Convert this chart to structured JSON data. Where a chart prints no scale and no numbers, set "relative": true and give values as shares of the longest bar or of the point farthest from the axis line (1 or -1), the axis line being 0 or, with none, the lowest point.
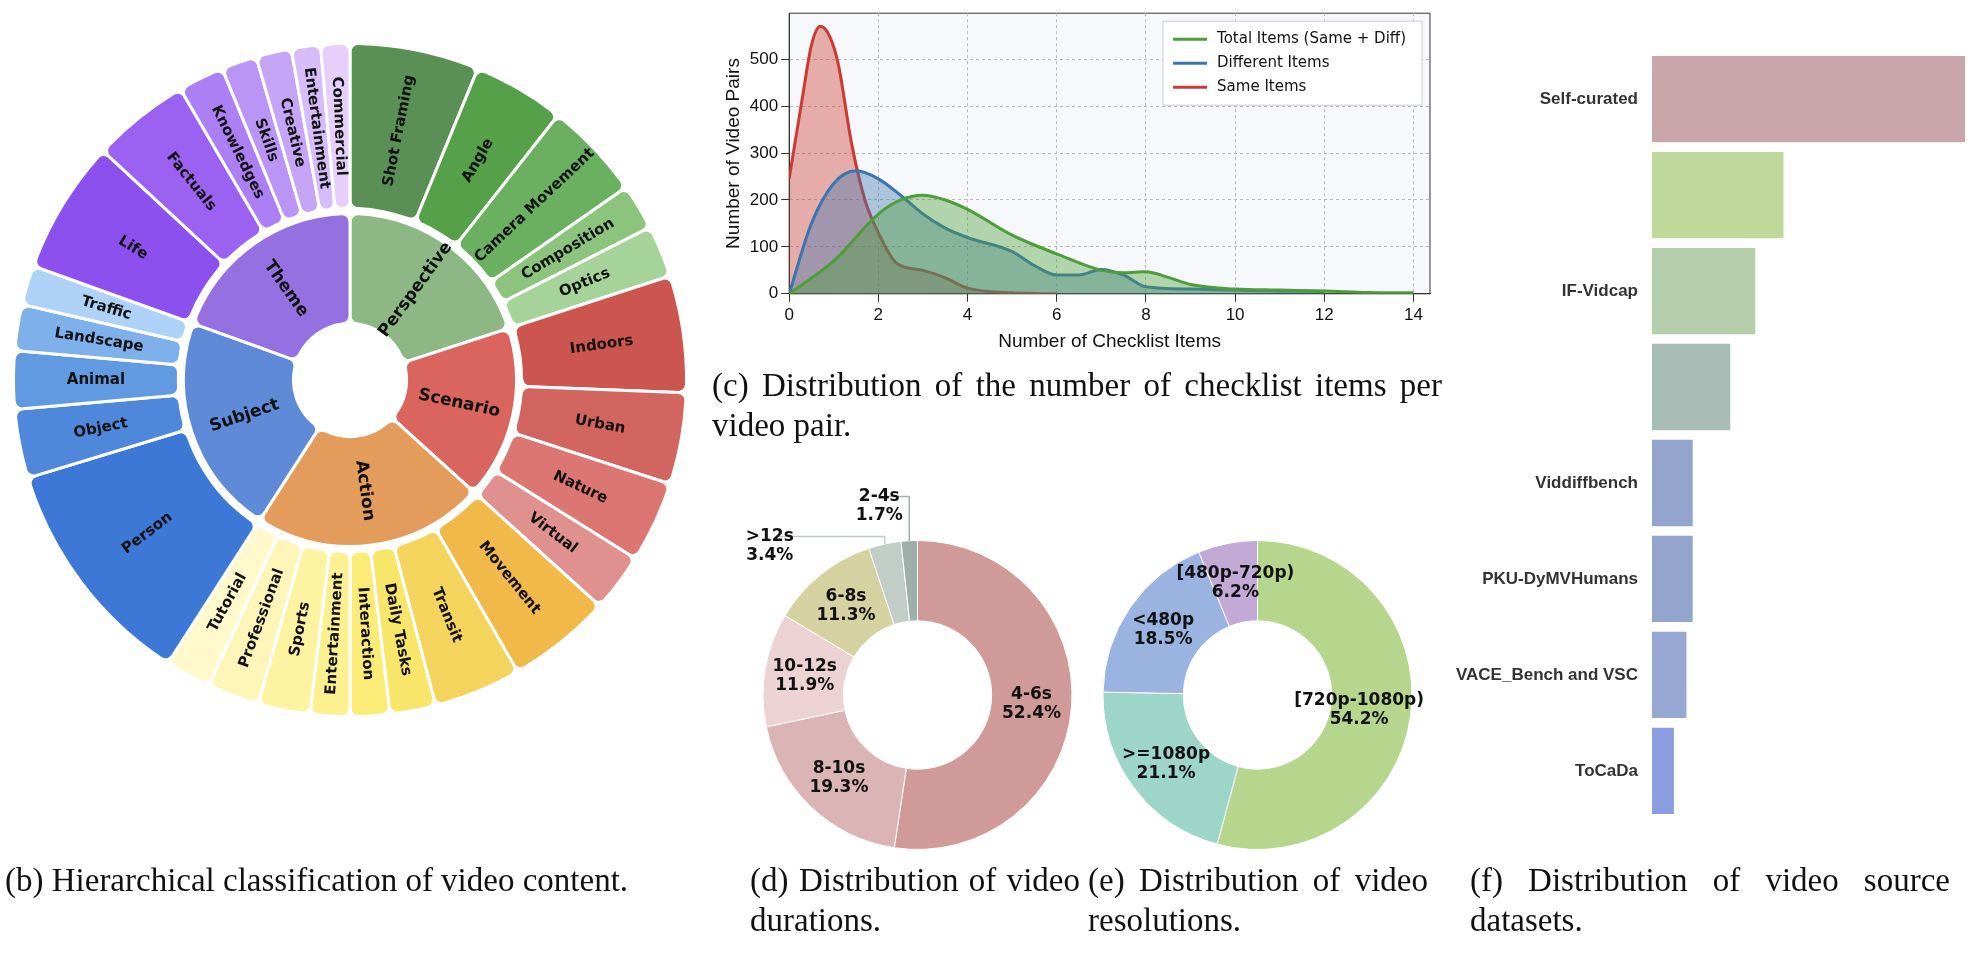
{
  "chart_data": [
    {
      "type": "donut",
      "categories": [
        "Shot Framing",
        "Angle",
        "Camera Movement",
        "Composition",
        "Optics",
        "Indoors",
        "Urban",
        "Nature",
        "Virtual",
        "Movement",
        "Transit",
        "Daily Tasks",
        "Interaction",
        "Entertainment",
        "Sports",
        "Professional",
        "Tutorial",
        "Person",
        "Object",
        "Animal",
        "Landscape",
        "Traffic",
        "Life",
        "Factuals",
        "Knowledges",
        "Skills",
        "Creative",
        "Entertainment",
        "Commercial"
      ],
      "values": [
        6.2,
        4.4,
        4.7,
        2.2,
        2.5,
        5.6,
        4.4,
        3.9,
        2.8,
        5.0,
        4.2,
        2.2,
        1.9,
        1.9,
        2.5,
        2.5,
        2.2,
        11.2,
        3.3,
        2.8,
        2.2,
        1.9,
        6.4,
        4.7,
        2.2,
        1.7,
        1.7,
        1.4,
        1.4
      ],
      "colors": [
        "#5a8f55",
        "#56a04a",
        "#6ab060",
        "#8cc47e",
        "#a6d39a",
        "#cc5550",
        "#d36560",
        "#dc7672",
        "#e0908e",
        "#f0b94a",
        "#f4d45c",
        "#f8e66a",
        "#fbec78",
        "#fdf090",
        "#fdf3a0",
        "#fef6b8",
        "#fff9cc",
        "#3e78d6",
        "#4f88db",
        "#619ae0",
        "#7eb0ec",
        "#aed2f8",
        "#8b50ee",
        "#9b62f2",
        "#ad7ff4",
        "#bb95f6",
        "#c6a5f7",
        "#d6bcf9",
        "#e6d0fb"
      ],
      "annotations": [
        "(b) Hierarchical classification of video content."
      ]
    },
    {
      "type": "donut",
      "categories": [
        "Perspective",
        "Scenario",
        "Action",
        "Subject",
        "Theme"
      ],
      "values": [
        20.0,
        16.7,
        22.4,
        21.4,
        19.5
      ],
      "colors": [
        "#8db886",
        "#d9655e",
        "#e39c5c",
        "#5e8ad8",
        "#9570e0"
      ]
    },
    {
      "type": "area",
      "xlabel": "Number of Checklist Items",
      "ylabel": "Number of Video Pairs",
      "xlim": [
        0,
        14.37
      ],
      "ylim": [
        0,
        598
      ],
      "xticks": [
        0,
        2,
        4,
        6,
        8,
        10,
        12,
        14
      ],
      "yticks": [
        0,
        100,
        200,
        300,
        400,
        500
      ],
      "grid": true,
      "legend": "top right",
      "marker": "none",
      "series": [
        {
          "name": "Total Items (Same + Diff)",
          "color": "#4d9e3a",
          "x": [
            0,
            1,
            2,
            2.5,
            3,
            3.5,
            4,
            5,
            6,
            7,
            7.5,
            8,
            8.5,
            9,
            10,
            11,
            12,
            13,
            14
          ],
          "values": [
            0,
            70,
            170,
            200,
            210,
            200,
            180,
            125,
            85,
            50,
            45,
            47,
            35,
            20,
            10,
            8,
            6,
            3,
            2
          ]
        },
        {
          "name": "Different Items",
          "color": "#3b75b0",
          "x": [
            0,
            0.5,
            1,
            1.5,
            2,
            2.5,
            3,
            3.5,
            4,
            5,
            5.5,
            6,
            6.5,
            7,
            7.5,
            8,
            9,
            10,
            11,
            12
          ],
          "values": [
            0,
            150,
            235,
            262,
            245,
            210,
            170,
            140,
            120,
            90,
            60,
            40,
            40,
            52,
            40,
            15,
            10,
            8,
            6,
            5
          ]
        },
        {
          "name": "Same Items",
          "color": "#cc3a33",
          "x": [
            0,
            0.3,
            0.5,
            0.7,
            0.9,
            1.1,
            1.4,
            1.7,
            2,
            2.4,
            3,
            3.5,
            4,
            5,
            6
          ],
          "values": [
            245,
            420,
            530,
            570,
            550,
            490,
            320,
            200,
            130,
            66,
            50,
            34,
            12,
            2,
            0
          ]
        }
      ],
      "annotations": [
        "(c) Distribution of the number of checklist items per video pair."
      ]
    },
    {
      "type": "donut",
      "categories": [
        "4-6s",
        "8-10s",
        "10-12s",
        "6-8s",
        ">12s",
        "2-4s"
      ],
      "values": [
        52.4,
        19.3,
        11.9,
        11.3,
        3.4,
        1.7
      ],
      "value_labels": [
        "52.4%",
        "19.3%",
        "11.9%",
        "11.3%",
        "3.4%",
        "1.7%"
      ],
      "colors": [
        "#d09a98",
        "#dbb5b5",
        "#ecd2d3",
        "#d6d1a0",
        "#c2cdc8",
        "#9fb0ac"
      ],
      "annotations": [
        "(d) Distribution of video durations."
      ]
    },
    {
      "type": "donut",
      "categories": [
        "[720p-1080p)",
        ">=1080p",
        "<480p",
        "[480p-720p)"
      ],
      "values": [
        54.2,
        21.1,
        18.5,
        6.2
      ],
      "value_labels": [
        "54.2%",
        "21.1%",
        "18.5%",
        "6.2%"
      ],
      "colors": [
        "#b7d68d",
        "#9dd5c9",
        "#9bb3e0",
        "#c3a9d6"
      ],
      "annotations": [
        "(e) Distribution of video resolutions."
      ]
    },
    {
      "type": "bar",
      "orientation": "horizontal",
      "relative": true,
      "categories": [
        "Self-curated",
        null,
        "IF-Vidcap",
        null,
        "Viddiffbench",
        "PKU-DyMVHumans",
        "VACE_Bench and VSC",
        "ToCaDa"
      ],
      "values": [
        1,
        0.42,
        0.33,
        0.25,
        0.13,
        0.13,
        0.11,
        0.07
      ],
      "colors": [
        "#c9a6ac",
        "#bfd99a",
        "#b5cfac",
        "#a8bdb6",
        "#93a5cc",
        "#93a5cc",
        "#97a8d4",
        "#8c9ee0"
      ],
      "annotations": [
        "(f) Distribution of video source datasets."
      ]
    }
  ]
}
